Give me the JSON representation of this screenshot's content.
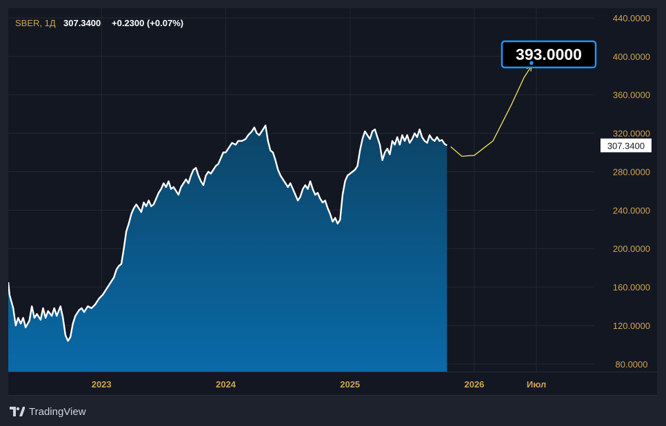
{
  "header": {
    "symbol": "SBER, 1Д",
    "price": "307.3400",
    "change": "+0.2300 (+0.07%)"
  },
  "last_price_label": "307.3400",
  "target_label": "393.0000",
  "brand": "TradingView",
  "colors": {
    "background": "#131722",
    "frame": "#1e222d",
    "grid": "#242833",
    "axis_text": "#d1a54e",
    "line": "#ffffff",
    "area_top": "#0c4466",
    "area_bottom": "#0a6aa8",
    "forecast": "#f2e85a",
    "target_border": "#2196f3"
  },
  "chart_data": {
    "type": "area",
    "title": "SBER, 1Д",
    "xlabel": "",
    "ylabel": "",
    "ylim": [
      72,
      450
    ],
    "xlim": [
      2022.25,
      2026.96
    ],
    "y_ticks": [
      "80.0000",
      "120.0000",
      "160.0000",
      "200.0000",
      "240.0000",
      "280.0000",
      "320.0000",
      "360.0000",
      "400.0000",
      "440.0000"
    ],
    "x_ticks": [
      {
        "label": "2023",
        "t": 2023.0
      },
      {
        "label": "2024",
        "t": 2024.0
      },
      {
        "label": "2025",
        "t": 2025.0
      },
      {
        "label": "2026",
        "t": 2026.0
      },
      {
        "label": "Июл",
        "t": 2026.5
      }
    ],
    "series": [
      {
        "name": "SBER",
        "points": [
          [
            2022.25,
            165
          ],
          [
            2022.26,
            152
          ],
          [
            2022.29,
            138
          ],
          [
            2022.31,
            120
          ],
          [
            2022.33,
            128
          ],
          [
            2022.35,
            122
          ],
          [
            2022.37,
            128
          ],
          [
            2022.39,
            118
          ],
          [
            2022.42,
            125
          ],
          [
            2022.44,
            140
          ],
          [
            2022.46,
            128
          ],
          [
            2022.48,
            132
          ],
          [
            2022.51,
            126
          ],
          [
            2022.53,
            138
          ],
          [
            2022.55,
            128
          ],
          [
            2022.57,
            135
          ],
          [
            2022.6,
            130
          ],
          [
            2022.62,
            138
          ],
          [
            2022.64,
            130
          ],
          [
            2022.67,
            140
          ],
          [
            2022.69,
            128
          ],
          [
            2022.71,
            110
          ],
          [
            2022.73,
            104
          ],
          [
            2022.75,
            108
          ],
          [
            2022.77,
            122
          ],
          [
            2022.79,
            130
          ],
          [
            2022.82,
            136
          ],
          [
            2022.84,
            138
          ],
          [
            2022.86,
            134
          ],
          [
            2022.89,
            140
          ],
          [
            2022.92,
            138
          ],
          [
            2022.95,
            142
          ],
          [
            2022.98,
            148
          ],
          [
            2023.01,
            152
          ],
          [
            2023.04,
            158
          ],
          [
            2023.07,
            164
          ],
          [
            2023.1,
            170
          ],
          [
            2023.12,
            178
          ],
          [
            2023.14,
            182
          ],
          [
            2023.16,
            184
          ],
          [
            2023.18,
            200
          ],
          [
            2023.2,
            218
          ],
          [
            2023.22,
            226
          ],
          [
            2023.24,
            236
          ],
          [
            2023.26,
            242
          ],
          [
            2023.28,
            246
          ],
          [
            2023.3,
            242
          ],
          [
            2023.32,
            238
          ],
          [
            2023.34,
            248
          ],
          [
            2023.36,
            244
          ],
          [
            2023.38,
            250
          ],
          [
            2023.4,
            244
          ],
          [
            2023.42,
            246
          ],
          [
            2023.44,
            252
          ],
          [
            2023.46,
            258
          ],
          [
            2023.48,
            262
          ],
          [
            2023.5,
            268
          ],
          [
            2023.52,
            264
          ],
          [
            2023.54,
            270
          ],
          [
            2023.56,
            262
          ],
          [
            2023.58,
            264
          ],
          [
            2023.6,
            260
          ],
          [
            2023.62,
            256
          ],
          [
            2023.64,
            264
          ],
          [
            2023.66,
            268
          ],
          [
            2023.68,
            272
          ],
          [
            2023.7,
            268
          ],
          [
            2023.72,
            276
          ],
          [
            2023.74,
            282
          ],
          [
            2023.76,
            284
          ],
          [
            2023.78,
            276
          ],
          [
            2023.8,
            270
          ],
          [
            2023.82,
            266
          ],
          [
            2023.84,
            276
          ],
          [
            2023.86,
            280
          ],
          [
            2023.88,
            278
          ],
          [
            2023.9,
            282
          ],
          [
            2023.92,
            286
          ],
          [
            2023.94,
            288
          ],
          [
            2023.96,
            294
          ],
          [
            2023.98,
            300
          ],
          [
            2024.0,
            300
          ],
          [
            2024.02,
            304
          ],
          [
            2024.05,
            310
          ],
          [
            2024.08,
            308
          ],
          [
            2024.1,
            312
          ],
          [
            2024.13,
            312
          ],
          [
            2024.16,
            314
          ],
          [
            2024.18,
            318
          ],
          [
            2024.21,
            322
          ],
          [
            2024.23,
            326
          ],
          [
            2024.25,
            320
          ],
          [
            2024.27,
            318
          ],
          [
            2024.3,
            324
          ],
          [
            2024.32,
            328
          ],
          [
            2024.34,
            312
          ],
          [
            2024.36,
            302
          ],
          [
            2024.38,
            300
          ],
          [
            2024.4,
            292
          ],
          [
            2024.42,
            282
          ],
          [
            2024.44,
            276
          ],
          [
            2024.46,
            272
          ],
          [
            2024.48,
            268
          ],
          [
            2024.5,
            264
          ],
          [
            2024.52,
            268
          ],
          [
            2024.54,
            262
          ],
          [
            2024.56,
            256
          ],
          [
            2024.58,
            250
          ],
          [
            2024.6,
            254
          ],
          [
            2024.62,
            262
          ],
          [
            2024.64,
            266
          ],
          [
            2024.66,
            262
          ],
          [
            2024.68,
            270
          ],
          [
            2024.7,
            262
          ],
          [
            2024.72,
            256
          ],
          [
            2024.74,
            258
          ],
          [
            2024.76,
            252
          ],
          [
            2024.78,
            248
          ],
          [
            2024.8,
            250
          ],
          [
            2024.82,
            242
          ],
          [
            2024.84,
            236
          ],
          [
            2024.86,
            228
          ],
          [
            2024.88,
            232
          ],
          [
            2024.9,
            226
          ],
          [
            2024.92,
            230
          ],
          [
            2024.94,
            256
          ],
          [
            2024.96,
            270
          ],
          [
            2024.98,
            276
          ],
          [
            2025.0,
            278
          ],
          [
            2025.02,
            280
          ],
          [
            2025.04,
            282
          ],
          [
            2025.06,
            286
          ],
          [
            2025.08,
            302
          ],
          [
            2025.1,
            314
          ],
          [
            2025.12,
            322
          ],
          [
            2025.14,
            318
          ],
          [
            2025.16,
            314
          ],
          [
            2025.18,
            322
          ],
          [
            2025.2,
            324
          ],
          [
            2025.22,
            316
          ],
          [
            2025.24,
            308
          ],
          [
            2025.26,
            292
          ],
          [
            2025.28,
            300
          ],
          [
            2025.3,
            304
          ],
          [
            2025.32,
            298
          ],
          [
            2025.34,
            312
          ],
          [
            2025.36,
            308
          ],
          [
            2025.38,
            316
          ],
          [
            2025.4,
            308
          ],
          [
            2025.42,
            318
          ],
          [
            2025.44,
            312
          ],
          [
            2025.46,
            318
          ],
          [
            2025.48,
            310
          ],
          [
            2025.5,
            314
          ],
          [
            2025.52,
            320
          ],
          [
            2025.54,
            316
          ],
          [
            2025.56,
            324
          ],
          [
            2025.58,
            316
          ],
          [
            2025.6,
            312
          ],
          [
            2025.62,
            310
          ],
          [
            2025.64,
            318
          ],
          [
            2025.66,
            314
          ],
          [
            2025.68,
            312
          ],
          [
            2025.7,
            316
          ],
          [
            2025.72,
            312
          ],
          [
            2025.74,
            313
          ],
          [
            2025.76,
            309
          ],
          [
            2025.78,
            307.34
          ]
        ]
      },
      {
        "name": "Forecast",
        "points": [
          [
            2025.81,
            306
          ],
          [
            2025.9,
            296
          ],
          [
            2026.0,
            297
          ],
          [
            2026.15,
            312
          ],
          [
            2026.3,
            350
          ],
          [
            2026.4,
            378
          ],
          [
            2026.46,
            390
          ]
        ]
      }
    ],
    "target": {
      "t": 2026.46,
      "value": 393
    },
    "legend": "none",
    "grid": true
  }
}
